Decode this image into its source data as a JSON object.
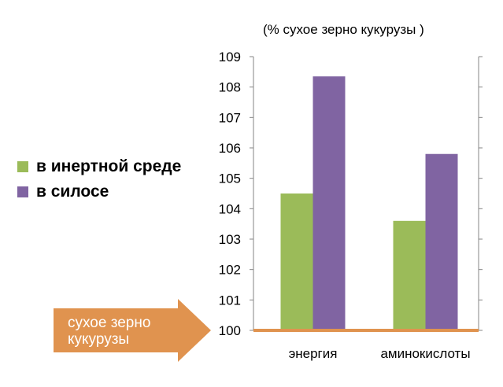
{
  "unit_note": "(% сухое зерно кукурузы )",
  "reference_label": "сухое зерно кукурузы",
  "colors": {
    "series1": "#9bbb59",
    "series2": "#8064a2",
    "reference": "#e0934f",
    "arrow_text": "#ffffff"
  },
  "chart_data": {
    "type": "bar",
    "title": "",
    "xlabel": "",
    "ylabel": "",
    "categories": [
      "энергия",
      "аминокислоты"
    ],
    "series": [
      {
        "name": "в инертной среде",
        "values": [
          104.5,
          103.6
        ]
      },
      {
        "name": "в силосе",
        "values": [
          108.35,
          105.8
        ]
      }
    ],
    "ylim": [
      100,
      109
    ],
    "yticks": [
      100,
      101,
      102,
      103,
      104,
      105,
      106,
      107,
      108,
      109
    ],
    "reference_line": 100,
    "grid": false,
    "legend_position": "left"
  }
}
